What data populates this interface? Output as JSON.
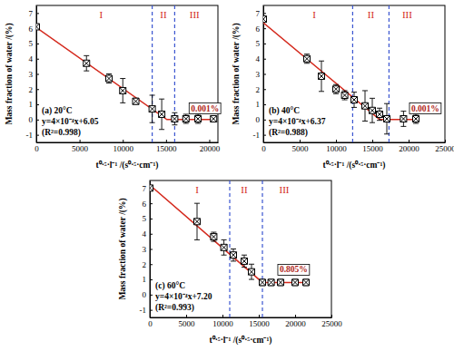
{
  "chart_data": [
    {
      "type": "scatter",
      "x_label": "t⁰·⁵·l⁻¹ /(s⁰·⁵·cm⁻¹)",
      "y_label": "Mass fraction of water /(%)",
      "xlim": [
        0,
        21000
      ],
      "ylim": [
        -1.5,
        7.5
      ],
      "xticks": [
        0,
        5000,
        10000,
        15000,
        20000
      ],
      "yticks": [
        -1,
        0,
        1,
        2,
        3,
        4,
        5,
        6,
        7
      ],
      "series": [
        {
          "type": "scatter",
          "color": "#000000",
          "marker": "square-x",
          "x": [
            0,
            5800,
            8400,
            10000,
            11500,
            13400,
            14500,
            16000,
            17300,
            18700,
            20500
          ],
          "values": [
            6.1,
            3.7,
            2.7,
            1.9,
            1.2,
            0.7,
            0.35,
            0.05,
            0.05,
            0.05,
            0.05
          ],
          "errors": [
            0.05,
            0.5,
            0.3,
            0.8,
            0.2,
            0.9,
            1.0,
            0.4,
            0.3,
            0.3,
            0.1
          ]
        },
        {
          "type": "line",
          "color": "#d42a1e",
          "x": [
            0,
            15100,
            20500
          ],
          "values": [
            6.05,
            0,
            0
          ]
        }
      ],
      "boundaries": [
        13400,
        16000
      ],
      "region_labels": [
        {
          "text": "I",
          "x": 7500
        },
        {
          "text": "II",
          "x": 14700
        },
        {
          "text": "III",
          "x": 18300
        }
      ],
      "annotation": {
        "value": 0.001,
        "label": "0.001%",
        "x": 19500,
        "y": 0.75
      },
      "legend_lines": [
        "(a) 20°C",
        "y=4×10⁻⁴x+6.05",
        "(R²=0.998)"
      ]
    },
    {
      "type": "scatter",
      "x_label": "t⁰·⁵·l⁻¹ /(s⁰·⁵·cm⁻¹)",
      "y_label": "Mass fraction of water /(%)",
      "xlim": [
        0,
        25000
      ],
      "ylim": [
        -1.5,
        7.5
      ],
      "xticks": [
        0,
        5000,
        10000,
        15000,
        20000,
        25000
      ],
      "yticks": [
        -1,
        0,
        1,
        2,
        3,
        4,
        5,
        6,
        7
      ],
      "series": [
        {
          "type": "scatter",
          "color": "#000000",
          "marker": "square-x",
          "x": [
            0,
            6000,
            8000,
            10000,
            11200,
            12500,
            14000,
            15000,
            16000,
            17000,
            19300,
            21000
          ],
          "values": [
            6.6,
            4.0,
            2.85,
            2.0,
            1.6,
            1.3,
            0.9,
            0.6,
            0.35,
            0.05,
            0.05,
            0.05
          ],
          "errors": [
            0.05,
            0.3,
            1.0,
            0.3,
            0.3,
            0.5,
            1.0,
            0.8,
            0.4,
            1.0,
            0.5,
            0.3
          ]
        },
        {
          "type": "line",
          "color": "#d42a1e",
          "x": [
            0,
            16000,
            21000
          ],
          "values": [
            6.37,
            0,
            0
          ]
        }
      ],
      "boundaries": [
        12300,
        17300
      ],
      "region_labels": [
        {
          "text": "I",
          "x": 7000
        },
        {
          "text": "II",
          "x": 14800
        },
        {
          "text": "III",
          "x": 19800
        }
      ],
      "annotation": {
        "value": 0.001,
        "label": "0.001%",
        "x": 22300,
        "y": 0.75
      },
      "legend_lines": [
        "(b) 40°C",
        "y=4×10⁻⁴x+6.37",
        "(R²=0.988)"
      ]
    },
    {
      "type": "scatter",
      "x_label": "t⁰·⁵·l⁻¹ /(s⁰·⁵·cm⁻¹)",
      "y_label": "Mass fraction of water /(%)",
      "xlim": [
        0,
        25000
      ],
      "ylim": [
        -1.5,
        7.5
      ],
      "xticks": [
        0,
        5000,
        10000,
        15000,
        20000,
        25000
      ],
      "yticks": [
        -1,
        0,
        1,
        2,
        3,
        4,
        5,
        6,
        7
      ],
      "series": [
        {
          "type": "scatter",
          "color": "#000000",
          "marker": "square-x",
          "x": [
            0,
            6500,
            8800,
            10200,
            11500,
            13000,
            14000,
            15500,
            16700,
            18000,
            20000,
            21500
          ],
          "values": [
            7.0,
            4.8,
            3.8,
            3.1,
            2.6,
            2.2,
            1.5,
            0.8,
            0.8,
            0.8,
            0.8,
            0.8
          ],
          "errors": [
            0.05,
            1.2,
            0.3,
            0.5,
            0.4,
            0.4,
            0.5,
            0.2,
            0.2,
            0.2,
            0.2,
            0.2
          ]
        },
        {
          "type": "line",
          "color": "#d42a1e",
          "x": [
            0,
            15500,
            21500
          ],
          "values": [
            7.2,
            0.8,
            0.8
          ]
        }
      ],
      "boundaries": [
        11000,
        15500
      ],
      "region_labels": [
        {
          "text": "I",
          "x": 6500
        },
        {
          "text": "II",
          "x": 13000
        },
        {
          "text": "III",
          "x": 18500
        }
      ],
      "annotation": {
        "value": 0.805,
        "label": "0.805%",
        "x": 19800,
        "y": 1.65
      },
      "legend_lines": [
        "(c) 60°C",
        "y=4×10⁻⁴x+7.20",
        "(R²=0.993)"
      ]
    }
  ]
}
